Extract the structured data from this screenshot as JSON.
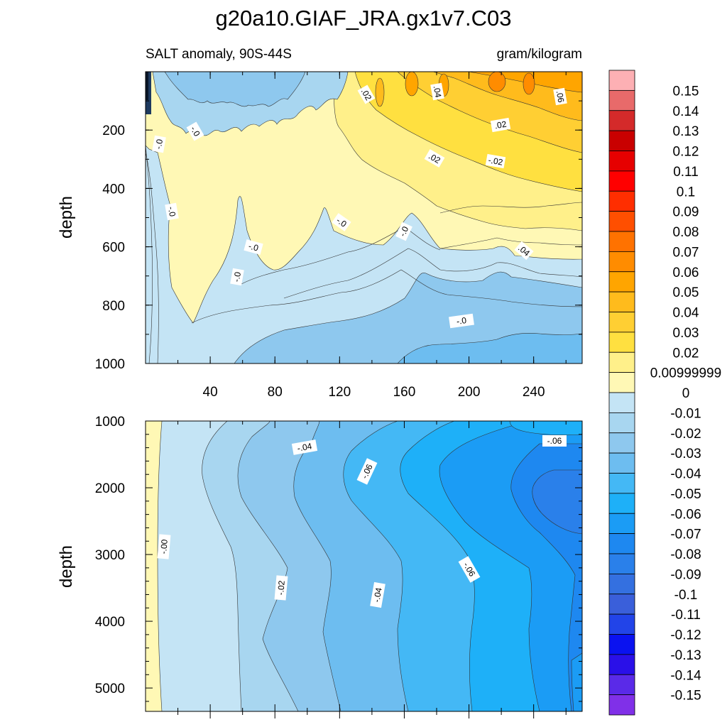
{
  "chart_data": {
    "type": "contour",
    "title": "g20a10.GIAF_JRA.gx1v7.C03",
    "colorbar": {
      "labels": [
        "0.15",
        "0.14",
        "0.13",
        "0.12",
        "0.11",
        "0.1",
        "0.09",
        "0.08",
        "0.07",
        "0.06",
        "0.05",
        "0.04",
        "0.03",
        "0.02",
        "0.00999999",
        "0",
        "-0.01",
        "-0.02",
        "-0.03",
        "-0.04",
        "-0.05",
        "-0.06",
        "-0.07",
        "-0.08",
        "-0.09",
        "-0.1",
        "-0.11",
        "-0.12",
        "-0.13",
        "-0.14",
        "-0.15"
      ],
      "colors": [
        "#fdb0b4",
        "#e86a6a",
        "#d42a2a",
        "#c90000",
        "#e60000",
        "#ff0000",
        "#ff2e00",
        "#ff4f00",
        "#ff7200",
        "#ff8c00",
        "#ffa500",
        "#ffbb1c",
        "#ffcf33",
        "#ffe040",
        "#fff08a",
        "#fff8b5",
        "#c4e4f5",
        "#a8d6f0",
        "#8ec8ee",
        "#6dbdf0",
        "#44b8f5",
        "#1eb0f8",
        "#1b9cf5",
        "#1e88f0",
        "#2a80ea",
        "#3470e0",
        "#3a5fda",
        "#2244e8",
        "#0a12f0",
        "#2a10e8",
        "#5a2ae8",
        "#8030e8"
      ]
    },
    "panels": [
      {
        "name": "upper",
        "left_title": "SALT anomaly, 90S-44S",
        "right_title": "gram/kilogram",
        "ylabel": "depth",
        "ylim": [
          1000,
          0
        ],
        "yticks": [
          "200",
          "400",
          "600",
          "800",
          "1000"
        ],
        "xlim": [
          0,
          270
        ],
        "xticks": [
          "40",
          "80",
          "120",
          "160",
          "200",
          "240"
        ],
        "contour_labels": [
          ".02",
          ".04",
          ".06",
          "-.0",
          "-.0",
          "-.0",
          "-.0",
          "-.0",
          "-.0",
          "-.0",
          ".04",
          ".02",
          ".02",
          "-.02",
          "-.0"
        ]
      },
      {
        "name": "lower",
        "ylabel": "depth",
        "ylim": [
          5350,
          1000
        ],
        "yticks": [
          "1000",
          "2000",
          "3000",
          "4000",
          "5000"
        ],
        "xlim": [
          0,
          270
        ],
        "contour_labels": [
          "-.04",
          "-.06",
          "-.06",
          "-.00",
          "-.02",
          "-.04",
          "-.06"
        ]
      }
    ]
  }
}
